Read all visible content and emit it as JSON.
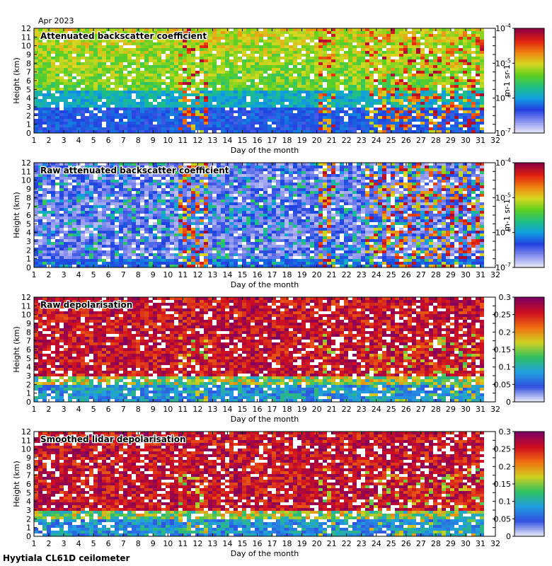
{
  "page": {
    "date_label": "Apr 2023",
    "footer": "Hyytiala CL61D ceilometer"
  },
  "chart_data": [
    {
      "type": "heatmap",
      "title": "Attenuated backscatter coefficient",
      "xlabel": "Day of the month",
      "ylabel": "Height (km)",
      "xlim": [
        1,
        32
      ],
      "ylim": [
        0,
        12
      ],
      "xticks": [
        1,
        2,
        3,
        4,
        5,
        6,
        7,
        8,
        9,
        10,
        11,
        12,
        13,
        14,
        15,
        16,
        17,
        18,
        19,
        20,
        21,
        22,
        23,
        24,
        25,
        26,
        27,
        28,
        29,
        30,
        31,
        32
      ],
      "yticks": [
        0,
        1,
        2,
        3,
        4,
        5,
        6,
        7,
        8,
        9,
        10,
        11,
        12
      ],
      "data_range_days": [
        1,
        31
      ],
      "colorbar": {
        "scale": "log",
        "range": [
          1e-07,
          0.0001
        ],
        "ticks": [
          "10-7",
          "10-6",
          "10-5",
          "10-4"
        ],
        "unit": "m-1 sr-1"
      },
      "colors": {
        "background": "#3050e0",
        "signal": "#d8d830",
        "cloud": "#a00020"
      }
    },
    {
      "type": "heatmap",
      "title": "Raw attenuated backscatter coefficient",
      "xlabel": "Day of the month",
      "ylabel": "Height (km)",
      "xlim": [
        1,
        32
      ],
      "ylim": [
        0,
        12
      ],
      "xticks": [
        1,
        2,
        3,
        4,
        5,
        6,
        7,
        8,
        9,
        10,
        11,
        12,
        13,
        14,
        15,
        16,
        17,
        18,
        19,
        20,
        21,
        22,
        23,
        24,
        25,
        26,
        27,
        28,
        29,
        30,
        31,
        32
      ],
      "yticks": [
        0,
        1,
        2,
        3,
        4,
        5,
        6,
        7,
        8,
        9,
        10,
        11,
        12
      ],
      "data_range_days": [
        1,
        31
      ],
      "colorbar": {
        "scale": "log",
        "range": [
          1e-07,
          0.0001
        ],
        "ticks": [
          "10-7",
          "10-6",
          "10-5",
          "10-4"
        ],
        "unit": "m-1 sr-1"
      },
      "colors": {
        "background": "#c8cff0",
        "signal": "#20a040",
        "cloud": "#a00020"
      }
    },
    {
      "type": "heatmap",
      "title": "Raw depolarisation",
      "xlabel": "Day of the month",
      "ylabel": "Height (km)",
      "xlim": [
        1,
        32
      ],
      "ylim": [
        0,
        12
      ],
      "xticks": [
        1,
        2,
        3,
        4,
        5,
        6,
        7,
        8,
        9,
        10,
        11,
        12,
        13,
        14,
        15,
        16,
        17,
        18,
        19,
        20,
        21,
        22,
        23,
        24,
        25,
        26,
        27,
        28,
        29,
        30,
        31,
        32
      ],
      "yticks": [
        0,
        1,
        2,
        3,
        4,
        5,
        6,
        7,
        8,
        9,
        10,
        11,
        12
      ],
      "data_range_days": [
        1,
        31
      ],
      "colorbar": {
        "scale": "linear",
        "range": [
          0,
          0.3
        ],
        "ticks": [
          "0",
          "0.05",
          "0.1",
          "0.15",
          "0.2",
          "0.25",
          "0.3"
        ],
        "unit": ""
      },
      "colors": {
        "background": "#800060",
        "signal": "#30a0e0",
        "cloud": "#e04010"
      }
    },
    {
      "type": "heatmap",
      "title": "Smoothed lidar depolarisation",
      "xlabel": "Day of the month",
      "ylabel": "Height (km)",
      "xlim": [
        1,
        32
      ],
      "ylim": [
        0,
        12
      ],
      "xticks": [
        1,
        2,
        3,
        4,
        5,
        6,
        7,
        8,
        9,
        10,
        11,
        12,
        13,
        14,
        15,
        16,
        17,
        18,
        19,
        20,
        21,
        22,
        23,
        24,
        25,
        26,
        27,
        28,
        29,
        30,
        31,
        32
      ],
      "yticks": [
        0,
        1,
        2,
        3,
        4,
        5,
        6,
        7,
        8,
        9,
        10,
        11,
        12
      ],
      "data_range_days": [
        1,
        31
      ],
      "colorbar": {
        "scale": "linear",
        "range": [
          0,
          0.3
        ],
        "ticks": [
          "0",
          "0.05",
          "0.1",
          "0.15",
          "0.2",
          "0.25",
          "0.3"
        ],
        "unit": ""
      },
      "colors": {
        "background": "#800060",
        "signal": "#30a0e0",
        "cloud": "#e04010"
      }
    }
  ]
}
